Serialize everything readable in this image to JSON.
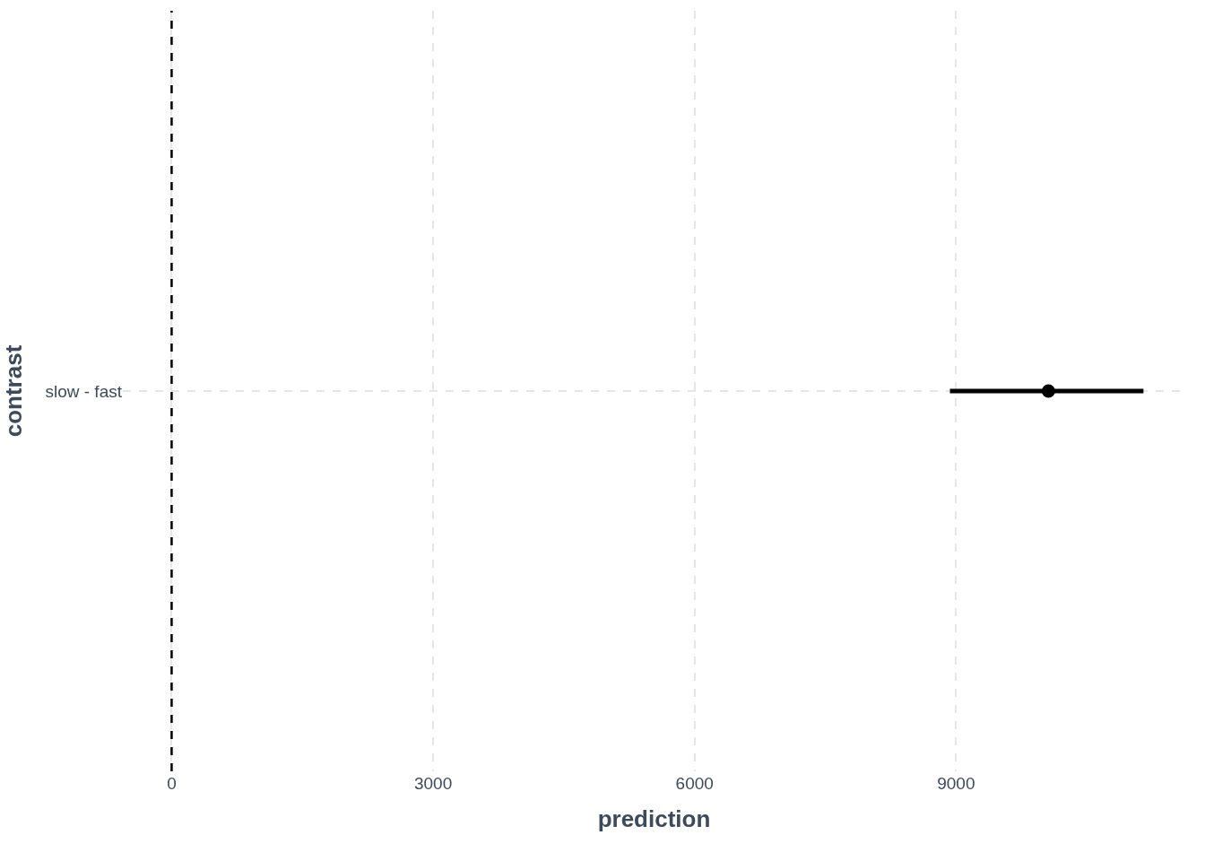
{
  "chart_data": {
    "type": "scatter",
    "orientation": "horizontal",
    "xlabel": "prediction",
    "ylabel": "contrast",
    "categories": [
      "slow - fast"
    ],
    "color": "#000000",
    "values": [
      10060
    ],
    "errors": [
      [
        8930,
        11150
      ]
    ],
    "xlim": [
      -560,
      11630
    ],
    "xticks": [
      0,
      3000,
      6000,
      9000
    ],
    "ref_lines": [
      {
        "axis": "x",
        "value": 0,
        "color": "#000000",
        "line_style": "dashed"
      }
    ],
    "grid": true,
    "marker": "circle"
  }
}
